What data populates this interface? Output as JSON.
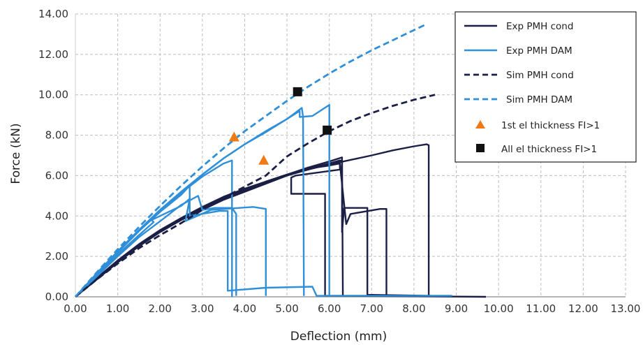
{
  "chart_data": {
    "type": "line",
    "title": "",
    "xlabel": "Deflection (mm)",
    "ylabel": "Force (kN)",
    "xlim": [
      0,
      13
    ],
    "ylim": [
      0,
      14
    ],
    "x_ticks": [
      "0.00",
      "1.00",
      "2.00",
      "3.00",
      "4.00",
      "5.00",
      "6.00",
      "7.00",
      "8.00",
      "9.00",
      "10.00",
      "11.00",
      "12.00",
      "13.00"
    ],
    "y_ticks": [
      "0.00",
      "2.00",
      "4.00",
      "6.00",
      "8.00",
      "10.00",
      "12.00",
      "14.00"
    ],
    "grid": "dashed",
    "legend_position": "top-right",
    "series": [
      {
        "name": "Exp PMH cond",
        "color": "#1b1f45",
        "style": "solid",
        "curves": [
          [
            [
              0,
              0
            ],
            [
              0.5,
              0.9
            ],
            [
              1,
              1.75
            ],
            [
              1.5,
              2.55
            ],
            [
              2,
              3.25
            ],
            [
              2.5,
              3.85
            ],
            [
              3,
              4.4
            ],
            [
              3.5,
              4.9
            ],
            [
              4,
              5.3
            ],
            [
              4.5,
              5.7
            ],
            [
              5,
              6.05
            ],
            [
              5.5,
              6.4
            ],
            [
              6,
              6.7
            ],
            [
              6.3,
              6.9
            ],
            [
              6.3,
              3.2
            ],
            [
              6.35,
              4.4
            ],
            [
              6.9,
              4.4
            ],
            [
              6.9,
              0.1
            ],
            [
              8.4,
              0.05
            ]
          ],
          [
            [
              0,
              0
            ],
            [
              0.5,
              0.85
            ],
            [
              1,
              1.7
            ],
            [
              1.5,
              2.5
            ],
            [
              2,
              3.2
            ],
            [
              2.5,
              3.8
            ],
            [
              3,
              4.3
            ],
            [
              3.5,
              4.8
            ],
            [
              4,
              5.2
            ],
            [
              4.5,
              5.6
            ],
            [
              5,
              6.0
            ],
            [
              5.5,
              6.3
            ],
            [
              6,
              6.6
            ],
            [
              6.3,
              6.75
            ],
            [
              6.32,
              0.05
            ],
            [
              9.7,
              0.0
            ]
          ],
          [
            [
              0,
              0
            ],
            [
              0.5,
              0.88
            ],
            [
              1,
              1.72
            ],
            [
              1.5,
              2.52
            ],
            [
              2,
              3.22
            ],
            [
              2.5,
              3.82
            ],
            [
              3,
              4.35
            ],
            [
              3.5,
              4.85
            ],
            [
              4,
              5.25
            ],
            [
              4.5,
              5.65
            ],
            [
              5,
              6.0
            ],
            [
              5.5,
              6.35
            ],
            [
              6,
              6.6
            ],
            [
              6.25,
              6.75
            ],
            [
              6.25,
              6.3
            ],
            [
              5.2,
              6.0
            ],
            [
              5.1,
              5.9
            ],
            [
              5.1,
              5.1
            ],
            [
              5.9,
              5.1
            ],
            [
              5.9,
              0.05
            ],
            [
              6.9,
              0.05
            ]
          ],
          [
            [
              0,
              0
            ],
            [
              0.5,
              0.9
            ],
            [
              1,
              1.75
            ],
            [
              1.5,
              2.55
            ],
            [
              2,
              3.25
            ],
            [
              2.5,
              3.85
            ],
            [
              3,
              4.4
            ],
            [
              3.5,
              4.9
            ],
            [
              4,
              5.3
            ],
            [
              4.5,
              5.7
            ],
            [
              5,
              6.05
            ],
            [
              5.5,
              6.35
            ],
            [
              6,
              6.5
            ],
            [
              6.25,
              6.6
            ],
            [
              6.4,
              3.6
            ],
            [
              6.5,
              4.1
            ],
            [
              7.2,
              4.35
            ],
            [
              7.35,
              4.35
            ],
            [
              7.35,
              0.05
            ]
          ],
          [
            [
              0,
              0
            ],
            [
              0.5,
              0.92
            ],
            [
              1,
              1.8
            ],
            [
              1.5,
              2.6
            ],
            [
              2,
              3.3
            ],
            [
              2.5,
              3.9
            ],
            [
              3,
              4.45
            ],
            [
              3.5,
              4.95
            ],
            [
              4,
              5.35
            ],
            [
              4.5,
              5.7
            ],
            [
              5,
              6.05
            ],
            [
              6,
              6.55
            ],
            [
              7,
              7.0
            ],
            [
              7.5,
              7.25
            ],
            [
              8,
              7.45
            ],
            [
              8.3,
              7.55
            ],
            [
              8.35,
              7.5
            ],
            [
              8.35,
              0.05
            ],
            [
              8.9,
              0.05
            ]
          ]
        ]
      },
      {
        "name": "Exp PMH DAM",
        "color": "#2f8fd8",
        "style": "solid",
        "curves": [
          [
            [
              0,
              0
            ],
            [
              0.5,
              1.05
            ],
            [
              1,
              2.1
            ],
            [
              1.5,
              3.05
            ],
            [
              1.85,
              3.7
            ],
            [
              1.8,
              3.8
            ],
            [
              2.5,
              4.5
            ],
            [
              2.7,
              4.85
            ],
            [
              2.6,
              3.75
            ],
            [
              3.2,
              4.3
            ],
            [
              4.2,
              4.45
            ],
            [
              4.5,
              4.35
            ],
            [
              4.5,
              0.05
            ]
          ],
          [
            [
              0,
              0
            ],
            [
              0.5,
              1.1
            ],
            [
              1,
              2.2
            ],
            [
              1.5,
              3.25
            ],
            [
              2,
              4.2
            ],
            [
              2.5,
              5.05
            ],
            [
              2.7,
              5.5
            ],
            [
              2.7,
              4.0
            ],
            [
              3.4,
              4.25
            ],
            [
              3.6,
              4.25
            ],
            [
              3.6,
              0.3
            ],
            [
              4.5,
              0.45
            ],
            [
              5.6,
              0.5
            ],
            [
              5.7,
              0.05
            ],
            [
              8.9,
              0.05
            ]
          ],
          [
            [
              0,
              0
            ],
            [
              0.5,
              1.1
            ],
            [
              1,
              2.2
            ],
            [
              1.5,
              3.25
            ],
            [
              2,
              4.25
            ],
            [
              2.5,
              5.15
            ],
            [
              3,
              5.95
            ],
            [
              3.5,
              6.6
            ],
            [
              3.7,
              6.75
            ],
            [
              3.7,
              0.0
            ]
          ],
          [
            [
              0,
              0
            ],
            [
              0.5,
              1.15
            ],
            [
              1,
              2.25
            ],
            [
              1.5,
              3.3
            ],
            [
              2,
              4.3
            ],
            [
              2.5,
              5.2
            ],
            [
              3,
              6.05
            ],
            [
              3.5,
              6.85
            ],
            [
              4,
              7.55
            ],
            [
              4.5,
              8.15
            ],
            [
              5,
              8.8
            ],
            [
              5.3,
              9.2
            ],
            [
              5.3,
              8.9
            ],
            [
              5.6,
              8.95
            ],
            [
              6,
              9.5
            ],
            [
              6,
              0.0
            ]
          ],
          [
            [
              0,
              0
            ],
            [
              0.5,
              1.15
            ],
            [
              1,
              2.25
            ],
            [
              1.5,
              3.3
            ],
            [
              2,
              4.3
            ],
            [
              2.5,
              5.2
            ],
            [
              3,
              6.05
            ],
            [
              3.5,
              6.85
            ],
            [
              4,
              7.55
            ],
            [
              4.5,
              8.2
            ],
            [
              5,
              8.8
            ],
            [
              5.35,
              9.35
            ],
            [
              5.38,
              8.9
            ],
            [
              5.4,
              0.05
            ]
          ],
          [
            [
              0,
              0
            ],
            [
              0.5,
              1.0
            ],
            [
              1,
              2.0
            ],
            [
              1.5,
              2.95
            ],
            [
              2.1,
              3.9
            ],
            [
              2.5,
              4.55
            ],
            [
              2.9,
              5.0
            ],
            [
              3,
              4.3
            ],
            [
              3.3,
              4.4
            ],
            [
              3.7,
              4.4
            ],
            [
              3.8,
              4.1
            ],
            [
              3.8,
              0.05
            ]
          ]
        ]
      },
      {
        "name": "Sim PMH cond",
        "color": "#1b1f45",
        "style": "dashed",
        "curves": [
          [
            [
              0,
              0
            ],
            [
              0.5,
              0.85
            ],
            [
              1,
              1.65
            ],
            [
              1.5,
              2.4
            ],
            [
              2,
              3.05
            ],
            [
              2.5,
              3.65
            ],
            [
              3,
              4.3
            ],
            [
              3.5,
              4.9
            ],
            [
              4,
              5.45
            ],
            [
              4.5,
              6.0
            ],
            [
              5,
              6.95
            ],
            [
              5.5,
              7.6
            ],
            [
              6,
              8.2
            ],
            [
              6.5,
              8.7
            ],
            [
              7,
              9.1
            ],
            [
              7.5,
              9.45
            ],
            [
              8,
              9.75
            ],
            [
              8.5,
              10.0
            ]
          ]
        ]
      },
      {
        "name": "Sim PMH DAM",
        "color": "#2f8fd8",
        "style": "dashed",
        "curves": [
          [
            [
              0,
              0
            ],
            [
              0.5,
              1.2
            ],
            [
              1,
              2.35
            ],
            [
              1.5,
              3.45
            ],
            [
              2,
              4.5
            ],
            [
              2.5,
              5.5
            ],
            [
              3,
              6.45
            ],
            [
              3.5,
              7.35
            ],
            [
              4,
              8.2
            ],
            [
              4.5,
              8.95
            ],
            [
              5,
              9.7
            ],
            [
              5.5,
              10.4
            ],
            [
              6,
              11.05
            ],
            [
              6.5,
              11.65
            ],
            [
              7,
              12.2
            ],
            [
              7.5,
              12.7
            ],
            [
              8,
              13.2
            ],
            [
              8.3,
              13.5
            ]
          ]
        ]
      },
      {
        "name": "1st el thickness FI>1",
        "color": "#f07a18",
        "style": "marker-triangle",
        "points": [
          [
            3.75,
            7.9
          ],
          [
            4.45,
            6.75
          ]
        ]
      },
      {
        "name": "All el thickness FI>1",
        "color": "#111111",
        "style": "marker-square",
        "points": [
          [
            5.25,
            10.15
          ],
          [
            5.95,
            8.25
          ]
        ]
      }
    ]
  }
}
